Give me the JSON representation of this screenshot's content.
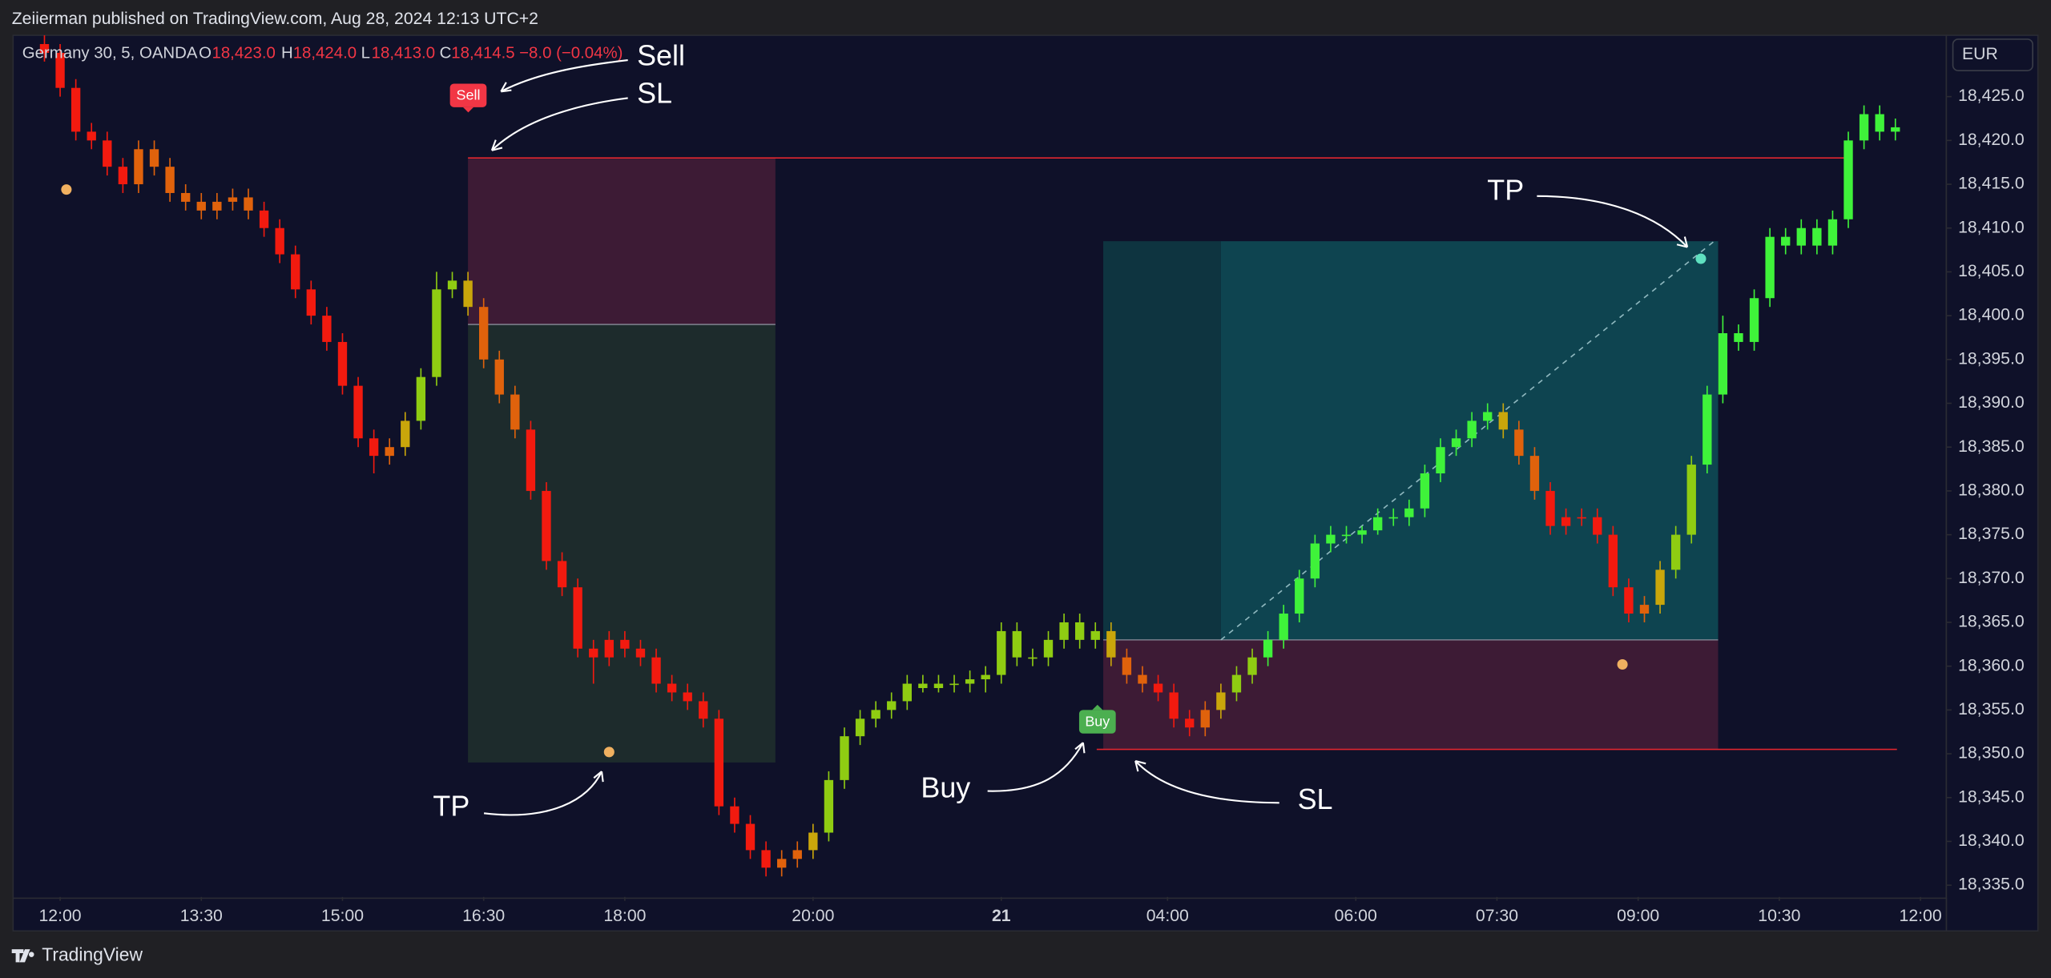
{
  "header": "Zeiierman published on TradingView.com, Aug 28, 2024 12:13 UTC+2",
  "footer": "TradingView",
  "currency": "EUR",
  "legend": {
    "symbol": "Germany 30, 5, OANDA",
    "o_label": "O",
    "o": "18,423.0",
    "h_label": "H",
    "h": "18,424.0",
    "l_label": "L",
    "l": "18,413.0",
    "c_label": "C",
    "c": "18,414.5",
    "change": "−8.0 (−0.04%)"
  },
  "annotations": {
    "sell": "Sell",
    "sell_sl": "SL",
    "sell_tp": "TP",
    "buy": "Buy",
    "buy_sl": "SL",
    "buy_tp": "TP",
    "sell_badge": "Sell",
    "buy_badge": "Buy"
  },
  "chart_data": {
    "type": "candlestick",
    "xlim": [
      -2,
      121.25
    ],
    "ylim": [
      18333.66,
      18432
    ],
    "xticks": [
      {
        "value": 1,
        "label": "12:00"
      },
      {
        "value": 10,
        "label": "13:30"
      },
      {
        "value": 19,
        "label": "15:00"
      },
      {
        "value": 28,
        "label": "16:30"
      },
      {
        "value": 37,
        "label": "18:00"
      },
      {
        "value": 49,
        "label": "20:00"
      },
      {
        "value": 61,
        "label": "21",
        "bold": true
      },
      {
        "value": 71.6,
        "label": "04:00"
      },
      {
        "value": 83.6,
        "label": "06:00"
      },
      {
        "value": 92.6,
        "label": "07:30"
      },
      {
        "value": 101.6,
        "label": "09:00"
      },
      {
        "value": 110.6,
        "label": "10:30"
      },
      {
        "value": 119.6,
        "label": "12:00"
      }
    ],
    "yticks": [
      {
        "value": 18335,
        "label": "18,335.0"
      },
      {
        "value": 18340,
        "label": "18,340.0"
      },
      {
        "value": 18345,
        "label": "18,345.0"
      },
      {
        "value": 18350,
        "label": "18,350.0"
      },
      {
        "value": 18355,
        "label": "18,355.0"
      },
      {
        "value": 18360,
        "label": "18,360.0"
      },
      {
        "value": 18365,
        "label": "18,365.0"
      },
      {
        "value": 18370,
        "label": "18,370.0"
      },
      {
        "value": 18375,
        "label": "18,375.0"
      },
      {
        "value": 18380,
        "label": "18,380.0"
      },
      {
        "value": 18385,
        "label": "18,385.0"
      },
      {
        "value": 18390,
        "label": "18,390.0"
      },
      {
        "value": 18395,
        "label": "18,395.0"
      },
      {
        "value": 18400,
        "label": "18,400.0"
      },
      {
        "value": 18405,
        "label": "18,405.0"
      },
      {
        "value": 18410,
        "label": "18,410.0"
      },
      {
        "value": 18415,
        "label": "18,415.0"
      },
      {
        "value": 18420,
        "label": "18,420.0"
      },
      {
        "value": 18425,
        "label": "18,425.0"
      }
    ],
    "grid": false,
    "candles": {
      "ohlc": [
        [
          18431,
          18432,
          18429,
          18430
        ],
        [
          18430,
          18431,
          18425,
          18426
        ],
        [
          18426,
          18427,
          18420,
          18421
        ],
        [
          18421,
          18422,
          18419,
          18420
        ],
        [
          18420,
          18421,
          18416,
          18417
        ],
        [
          18417,
          18418,
          18414,
          18415
        ],
        [
          18415,
          18420,
          18414,
          18419
        ],
        [
          18419,
          18420,
          18416,
          18417
        ],
        [
          18417,
          18418,
          18413,
          18414
        ],
        [
          18414,
          18415,
          18412,
          18413
        ],
        [
          18413,
          18414,
          18411,
          18412
        ],
        [
          18412,
          18414,
          18411,
          18413
        ],
        [
          18413,
          18414.5,
          18412,
          18413.5
        ],
        [
          18413.5,
          18414.5,
          18411,
          18412
        ],
        [
          18412,
          18413,
          18409,
          18410
        ],
        [
          18410,
          18411,
          18406,
          18407
        ],
        [
          18407,
          18408,
          18402,
          18403
        ],
        [
          18403,
          18404,
          18399,
          18400
        ],
        [
          18400,
          18401,
          18396,
          18397
        ],
        [
          18397,
          18398,
          18391,
          18392
        ],
        [
          18392,
          18393,
          18385,
          18386
        ],
        [
          18386,
          18387,
          18382,
          18384
        ],
        [
          18384,
          18386,
          18383,
          18385
        ],
        [
          18385,
          18389,
          18384,
          18388
        ],
        [
          18388,
          18394,
          18387,
          18393
        ],
        [
          18393,
          18405,
          18392,
          18403
        ],
        [
          18403,
          18405,
          18402,
          18404
        ],
        [
          18404,
          18405,
          18400,
          18401
        ],
        [
          18401,
          18402,
          18394,
          18395
        ],
        [
          18395,
          18396,
          18390,
          18391
        ],
        [
          18391,
          18392,
          18386,
          18387
        ],
        [
          18387,
          18388,
          18379,
          18380
        ],
        [
          18380,
          18381,
          18371,
          18372
        ],
        [
          18372,
          18373,
          18368,
          18369
        ],
        [
          18369,
          18370,
          18361,
          18362
        ],
        [
          18362,
          18363,
          18358,
          18361
        ],
        [
          18361,
          18364,
          18360,
          18363
        ],
        [
          18363,
          18364,
          18361,
          18362
        ],
        [
          18362,
          18363,
          18360,
          18361
        ],
        [
          18361,
          18362,
          18357,
          18358
        ],
        [
          18358,
          18359,
          18356,
          18357
        ],
        [
          18357,
          18358,
          18355,
          18356
        ],
        [
          18356,
          18357,
          18353,
          18354
        ],
        [
          18354,
          18355,
          18343,
          18344
        ],
        [
          18344,
          18345,
          18341,
          18342
        ],
        [
          18342,
          18343,
          18338,
          18339
        ],
        [
          18339,
          18340,
          18336,
          18337
        ],
        [
          18337,
          18339,
          18336,
          18338
        ],
        [
          18338,
          18340,
          18337,
          18339
        ],
        [
          18339,
          18342,
          18338,
          18341
        ],
        [
          18341,
          18348,
          18340,
          18347
        ],
        [
          18347,
          18353,
          18346,
          18352
        ],
        [
          18352,
          18355,
          18351,
          18354
        ],
        [
          18354,
          18356,
          18353,
          18355
        ],
        [
          18355,
          18357,
          18354,
          18356
        ],
        [
          18356,
          18359,
          18355,
          18358
        ],
        [
          18358,
          18359,
          18357,
          18357.5
        ],
        [
          18357.5,
          18359,
          18357,
          18358
        ],
        [
          18358,
          18359,
          18357,
          18358
        ],
        [
          18358,
          18359.5,
          18357,
          18358.5
        ],
        [
          18358.5,
          18360,
          18357,
          18359
        ],
        [
          18359,
          18365,
          18358,
          18364
        ],
        [
          18364,
          18365,
          18360,
          18361
        ],
        [
          18361,
          18362,
          18360,
          18361
        ],
        [
          18361,
          18364,
          18360,
          18363
        ],
        [
          18363,
          18366,
          18362,
          18365
        ],
        [
          18365,
          18366,
          18362,
          18363
        ],
        [
          18363,
          18365,
          18362,
          18364
        ],
        [
          18364,
          18365,
          18360,
          18361
        ],
        [
          18361,
          18362,
          18358,
          18359
        ],
        [
          18359,
          18360,
          18357,
          18358
        ],
        [
          18358,
          18359,
          18356,
          18357
        ],
        [
          18357,
          18358,
          18353,
          18354
        ],
        [
          18354,
          18355,
          18352,
          18353
        ],
        [
          18353,
          18356,
          18352,
          18355
        ],
        [
          18355,
          18358,
          18354,
          18357
        ],
        [
          18357,
          18360,
          18356,
          18359
        ],
        [
          18359,
          18362,
          18358,
          18361
        ],
        [
          18361,
          18364,
          18360,
          18363
        ],
        [
          18363,
          18367,
          18362,
          18366
        ],
        [
          18366,
          18371,
          18365,
          18370
        ],
        [
          18370,
          18375,
          18369,
          18374
        ],
        [
          18374,
          18376,
          18373,
          18375
        ],
        [
          18375,
          18376,
          18374,
          18375
        ],
        [
          18375,
          18376,
          18374,
          18375.5
        ],
        [
          18375.5,
          18378,
          18375,
          18377
        ],
        [
          18377,
          18378,
          18376,
          18377
        ],
        [
          18377,
          18379,
          18376,
          18378
        ],
        [
          18378,
          18383,
          18377,
          18382
        ],
        [
          18382,
          18386,
          18381,
          18385
        ],
        [
          18385,
          18387,
          18384,
          18386
        ],
        [
          18386,
          18389,
          18385,
          18388
        ],
        [
          18388,
          18390,
          18387,
          18389
        ],
        [
          18389,
          18390,
          18386,
          18387
        ],
        [
          18387,
          18388,
          18383,
          18384
        ],
        [
          18384,
          18385,
          18379,
          18380
        ],
        [
          18380,
          18381,
          18375,
          18376
        ],
        [
          18376,
          18378,
          18375,
          18377
        ],
        [
          18377,
          18378,
          18376,
          18377
        ],
        [
          18377,
          18378,
          18374,
          18375
        ],
        [
          18375,
          18376,
          18368,
          18369
        ],
        [
          18369,
          18370,
          18365,
          18366
        ],
        [
          18366,
          18368,
          18365,
          18367
        ],
        [
          18367,
          18372,
          18366,
          18371
        ],
        [
          18371,
          18376,
          18370,
          18375
        ],
        [
          18375,
          18384,
          18374,
          18383
        ],
        [
          18383,
          18392,
          18382,
          18391
        ],
        [
          18391,
          18400,
          18390,
          18398
        ],
        [
          18398,
          18399,
          18396,
          18397
        ],
        [
          18397,
          18403,
          18396,
          18402
        ],
        [
          18402,
          18410,
          18401,
          18409
        ],
        [
          18409,
          18410,
          18407,
          18408
        ],
        [
          18408,
          18411,
          18407,
          18410
        ],
        [
          18410,
          18411,
          18407,
          18408
        ],
        [
          18408,
          18412,
          18407,
          18411
        ],
        [
          18411,
          18421,
          18410,
          18420
        ],
        [
          18420,
          18424,
          18419,
          18423
        ],
        [
          18423,
          18424,
          18420,
          18421
        ],
        [
          18421,
          18422.5,
          18420,
          18421.5
        ]
      ],
      "colors": [
        "#f21a0f",
        "#f21a0f",
        "#f21a0f",
        "#f21a0f",
        "#f21a0f",
        "#f21a0f",
        "#e0620c",
        "#e0620c",
        "#e0620c",
        "#e0620c",
        "#e0620c",
        "#e0620c",
        "#e0620c",
        "#e0620c",
        "#f21a0f",
        "#f21a0f",
        "#f21a0f",
        "#f21a0f",
        "#f21a0f",
        "#f21a0f",
        "#f21a0f",
        "#f21a0f",
        "#e0620c",
        "#c9a60b",
        "#8fcc12",
        "#8fcc12",
        "#8fcc12",
        "#c9a60b",
        "#e0620c",
        "#e0620c",
        "#e0620c",
        "#f21a0f",
        "#f21a0f",
        "#f21a0f",
        "#f21a0f",
        "#f21a0f",
        "#f21a0f",
        "#f21a0f",
        "#f21a0f",
        "#f21a0f",
        "#f21a0f",
        "#f21a0f",
        "#f21a0f",
        "#f21a0f",
        "#f21a0f",
        "#f21a0f",
        "#f21a0f",
        "#e0620c",
        "#e0620c",
        "#c9a60b",
        "#8fcc12",
        "#8fcc12",
        "#8fcc12",
        "#8fcc12",
        "#8fcc12",
        "#8fcc12",
        "#8fcc12",
        "#8fcc12",
        "#8fcc12",
        "#8fcc12",
        "#8fcc12",
        "#8fcc12",
        "#8fcc12",
        "#8fcc12",
        "#8fcc12",
        "#8fcc12",
        "#8fcc12",
        "#8fcc12",
        "#c9a60b",
        "#e0620c",
        "#e0620c",
        "#f21a0f",
        "#f21a0f",
        "#f21a0f",
        "#e0620c",
        "#c9a60b",
        "#8fcc12",
        "#8fcc12",
        "#3ff23a",
        "#3ff23a",
        "#3ff23a",
        "#3ff23a",
        "#3ff23a",
        "#3ff23a",
        "#3ff23a",
        "#3ff23a",
        "#3ff23a",
        "#3ff23a",
        "#3ff23a",
        "#3ff23a",
        "#3ff23a",
        "#3ff23a",
        "#3ff23a",
        "#c9a60b",
        "#e0620c",
        "#e0620c",
        "#f21a0f",
        "#f21a0f",
        "#f21a0f",
        "#f21a0f",
        "#f21a0f",
        "#f21a0f",
        "#e0620c",
        "#c9a60b",
        "#8fcc12",
        "#8fcc12",
        "#3ff23a",
        "#3ff23a",
        "#3ff23a",
        "#3ff23a",
        "#3ff23a",
        "#3ff23a",
        "#3ff23a",
        "#3ff23a",
        "#3ff23a",
        "#3ff23a",
        "#3ff23a",
        "#3ff23a",
        "#3ff23a"
      ]
    },
    "positions": [
      {
        "side": "short",
        "start": 27,
        "end": 46.6,
        "line_end": 114.75,
        "stop": 18418,
        "entry": 18399,
        "target": 18349,
        "loss_color": "#3d1b35",
        "profit_color": "#1d2b2c"
      },
      {
        "side": "long",
        "start": 67.5,
        "trigger": 75,
        "end": 106.7,
        "line_end": 118.1,
        "stop": 18350.5,
        "entry": 18363,
        "target": 18408.5,
        "loss_color": "#3d1b35",
        "profit_color": "#0e4450",
        "pending_color": "#0e3440"
      }
    ],
    "markers": [
      {
        "x": 1.4,
        "y": 18414.4,
        "color": "#f0b060"
      },
      {
        "x": 36,
        "y": 18350.2,
        "color": "#f0b060"
      },
      {
        "x": 100.6,
        "y": 18360.2,
        "color": "#f0b060"
      },
      {
        "x": 105.6,
        "y": 18406.5,
        "color": "#5fe0c0"
      }
    ]
  }
}
